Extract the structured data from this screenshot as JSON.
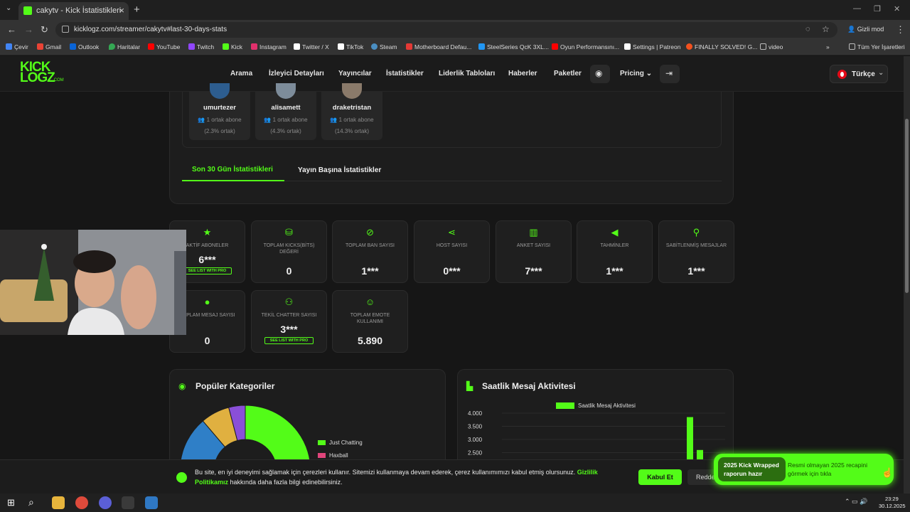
{
  "browser": {
    "tab_title": "cakytv - Kick İstatistikleri",
    "url": "kicklogz.com/streamer/cakytv#last-30-days-stats",
    "incognito_label": "Gizli mod",
    "bookmarks": [
      {
        "label": "Çevir",
        "color": "#4285f4"
      },
      {
        "label": "Gmail",
        "color": "#ea4335"
      },
      {
        "label": "Outlook",
        "color": "#0a64d6"
      },
      {
        "label": "Haritalar",
        "color": "#34a853"
      },
      {
        "label": "YouTube",
        "color": "#ff0000"
      },
      {
        "label": "Twitch",
        "color": "#9146ff"
      },
      {
        "label": "Kick",
        "color": "#53fc18"
      },
      {
        "label": "Instagram",
        "color": "#e1306c"
      },
      {
        "label": "Twitter / X",
        "color": "#ffffff"
      },
      {
        "label": "TikTok",
        "color": "#ffffff"
      },
      {
        "label": "Steam",
        "color": "#4a8ec2"
      },
      {
        "label": "Motherboard Defau...",
        "color": "#e53935"
      },
      {
        "label": "SteelSeries QcK 3XL...",
        "color": "#2196f3"
      },
      {
        "label": "Oyun Performansını...",
        "color": "#ff0000"
      },
      {
        "label": "Settings | Patreon",
        "color": "#ffffff"
      },
      {
        "label": "FINALLY SOLVED! G...",
        "color": "#f4511e"
      },
      {
        "label": "video",
        "color": "#bbbbbb"
      }
    ],
    "all_bookmarks": "Tüm Yer İşaretleri"
  },
  "site": {
    "logo_line1": "KICK",
    "logo_line2": "LOGZ",
    "logo_com": ".COM",
    "nav": [
      "Arama",
      "İzleyici Detayları",
      "Yayıncılar",
      "İstatistikler",
      "Liderlik Tabloları",
      "Haberler",
      "Paketler"
    ],
    "pricing": "Pricing",
    "language": "Türkçe"
  },
  "shared_subs": [
    {
      "name": "umurtezer",
      "subs": "1 ortak abone",
      "pct": "(2.3% ortak)"
    },
    {
      "name": "alisamett",
      "subs": "1 ortak abone",
      "pct": "(4.3% ortak)"
    },
    {
      "name": "draketristan",
      "subs": "1 ortak abone",
      "pct": "(14.3% ortak)"
    }
  ],
  "tabs": {
    "active": "Son 30 Gün İstatistikleri",
    "other": "Yayın Başına İstatistikler"
  },
  "stats": [
    {
      "icon": "star-icon",
      "glyph": "★",
      "label": "AKTİF ABONELER",
      "value": "6***",
      "pro": "SEE LIST WITH PRO"
    },
    {
      "icon": "coins-icon",
      "glyph": "⛁",
      "label": "TOPLAM KICKS(BİTS) DEĞERİ",
      "value": "0"
    },
    {
      "icon": "ban-icon",
      "glyph": "⊘",
      "label": "TOPLAM BAN SAYISI",
      "value": "1***"
    },
    {
      "icon": "share-icon",
      "glyph": "⋖",
      "label": "HOST SAYISI",
      "value": "0***"
    },
    {
      "icon": "poll-icon",
      "glyph": "▥",
      "label": "ANKET SAYISI",
      "value": "7***"
    },
    {
      "icon": "megaphone-icon",
      "glyph": "📢",
      "label": "TAHMİNLER",
      "value": "1***"
    },
    {
      "icon": "pin-icon",
      "glyph": "📌",
      "label": "SABİTLENMİŞ MESAJLAR",
      "value": "1***"
    },
    {
      "icon": "chat-icon",
      "glyph": "●",
      "label": "TOPLAM MESAJ SAYISI",
      "value": "0"
    },
    {
      "icon": "users-icon",
      "glyph": "👥",
      "label": "TEKİL CHATTER SAYISI",
      "value": "3***",
      "pro": "SEE LIST WITH PRO"
    },
    {
      "icon": "smile-icon",
      "glyph": "☺",
      "label": "TOPLAM EMOTE KULLANIMI",
      "value": "5.890"
    }
  ],
  "categories": {
    "title": "Popüler Kategoriler",
    "legend": [
      "Just Chatting",
      "Haxball"
    ]
  },
  "activity": {
    "title": "Saatlik Mesaj Aktivitesi",
    "legend": "Saatlik Mesaj Aktivitesi"
  },
  "chart_data": [
    {
      "type": "pie",
      "title": "Popüler Kategoriler",
      "labels": [
        "Just Chatting",
        "Haxball",
        "",
        "",
        ""
      ],
      "values": [
        58,
        17,
        12,
        7,
        4
      ],
      "colors": [
        "#53fc18",
        "#e0457b",
        "#2f7fc7",
        "#e0b040",
        "#8a4fd8"
      ]
    },
    {
      "type": "bar",
      "title": "Saatlik Mesaj Aktivitesi",
      "series": [
        {
          "name": "Saatlik Mesaj Aktivitesi",
          "values": [
            3850,
            2600
          ]
        }
      ],
      "yticks": [
        "4.000",
        "3.500",
        "3.000",
        "2.500"
      ],
      "ylim": [
        2300,
        4000
      ],
      "color": "#53fc18"
    }
  ],
  "cookie": {
    "text1": "Bu site, en iyi deneyimi sağlamak için çerezleri kullanır. Sitemizi kullanmaya devam ederek, çerez kullanımımızı kabul etmiş olursunuz.",
    "link1": "Gizlilik",
    "link2": "Politikamız",
    "text2": "hakkında daha fazla bilgi edinebilirsiniz.",
    "accept": "Kabul Et",
    "reject": "Reddet"
  },
  "wrapped": {
    "left1": "2025 Kick Wrapped",
    "left2": "raporun hazır",
    "right1": "Resmi olmayan 2025 recapini",
    "right2": "görmek için tıkla"
  },
  "taskbar": {
    "time": "23:29",
    "date": "30.12.2025"
  }
}
